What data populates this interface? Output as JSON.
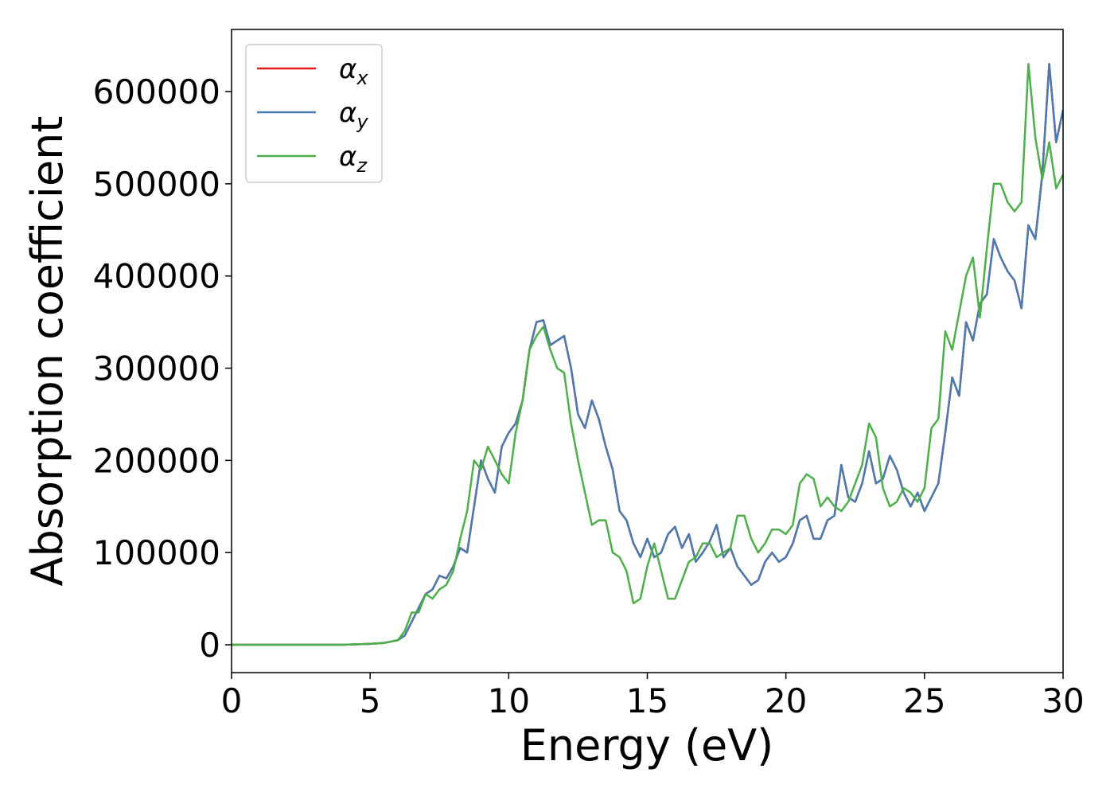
{
  "chart_data": {
    "type": "line",
    "xlabel": "Energy (eV)",
    "ylabel": "Absorption coefficient",
    "x": [
      0,
      1,
      2,
      3,
      4,
      5,
      5.5,
      6,
      6.25,
      6.5,
      6.75,
      7,
      7.25,
      7.5,
      7.75,
      8,
      8.25,
      8.5,
      8.75,
      9,
      9.25,
      9.5,
      9.75,
      10,
      10.25,
      10.5,
      10.75,
      11,
      11.25,
      11.5,
      11.75,
      12,
      12.25,
      12.5,
      12.75,
      13,
      13.25,
      13.5,
      13.75,
      14,
      14.25,
      14.5,
      14.75,
      15,
      15.25,
      15.5,
      15.75,
      16,
      16.25,
      16.5,
      16.75,
      17,
      17.25,
      17.5,
      17.75,
      18,
      18.25,
      18.5,
      18.75,
      19,
      19.25,
      19.5,
      19.75,
      20,
      20.25,
      20.5,
      20.75,
      21,
      21.25,
      21.5,
      21.75,
      22,
      22.25,
      22.5,
      22.75,
      23,
      23.25,
      23.5,
      23.75,
      24,
      24.25,
      24.5,
      24.75,
      25,
      25.25,
      25.5,
      25.75,
      26,
      26.25,
      26.5,
      26.75,
      27,
      27.25,
      27.5,
      27.75,
      28,
      28.25,
      28.5,
      28.75,
      29,
      29.25,
      29.5,
      29.75,
      30
    ],
    "series": [
      {
        "name": "αx",
        "color": "#e41a1c",
        "values": [
          0,
          0,
          0,
          0,
          0,
          1000,
          2000,
          5000,
          10000,
          25000,
          40000,
          55000,
          60000,
          75000,
          72000,
          85000,
          105000,
          100000,
          150000,
          200000,
          180000,
          165000,
          215000,
          230000,
          240000,
          265000,
          320000,
          350000,
          352000,
          325000,
          330000,
          335000,
          300000,
          250000,
          235000,
          265000,
          245000,
          215000,
          190000,
          145000,
          135000,
          110000,
          95000,
          115000,
          95000,
          100000,
          120000,
          128000,
          105000,
          120000,
          90000,
          100000,
          112000,
          130000,
          95000,
          105000,
          85000,
          75000,
          65000,
          70000,
          90000,
          100000,
          90000,
          95000,
          110000,
          135000,
          140000,
          115000,
          115000,
          135000,
          140000,
          195000,
          160000,
          155000,
          175000,
          210000,
          175000,
          180000,
          205000,
          190000,
          165000,
          150000,
          165000,
          145000,
          160000,
          175000,
          230000,
          290000,
          270000,
          350000,
          330000,
          370000,
          380000,
          440000,
          420000,
          405000,
          395000,
          365000,
          455000,
          440000,
          510000,
          630000,
          545000,
          580000
        ]
      },
      {
        "name": "αy",
        "color": "#4a7bb0",
        "values": [
          0,
          0,
          0,
          0,
          0,
          1000,
          2000,
          5000,
          10000,
          25000,
          40000,
          55000,
          60000,
          75000,
          72000,
          85000,
          105000,
          100000,
          150000,
          200000,
          180000,
          165000,
          215000,
          230000,
          240000,
          265000,
          320000,
          350000,
          352000,
          325000,
          330000,
          335000,
          300000,
          250000,
          235000,
          265000,
          245000,
          215000,
          190000,
          145000,
          135000,
          110000,
          95000,
          115000,
          95000,
          100000,
          120000,
          128000,
          105000,
          120000,
          90000,
          100000,
          112000,
          130000,
          95000,
          105000,
          85000,
          75000,
          65000,
          70000,
          90000,
          100000,
          90000,
          95000,
          110000,
          135000,
          140000,
          115000,
          115000,
          135000,
          140000,
          195000,
          160000,
          155000,
          175000,
          210000,
          175000,
          180000,
          205000,
          190000,
          165000,
          150000,
          165000,
          145000,
          160000,
          175000,
          230000,
          290000,
          270000,
          350000,
          330000,
          370000,
          380000,
          440000,
          420000,
          405000,
          395000,
          365000,
          455000,
          440000,
          510000,
          630000,
          545000,
          580000
        ]
      },
      {
        "name": "αz",
        "color": "#4daf4a",
        "values": [
          0,
          0,
          0,
          0,
          0,
          1000,
          2000,
          5000,
          15000,
          35000,
          35000,
          55000,
          50000,
          60000,
          65000,
          80000,
          115000,
          145000,
          200000,
          190000,
          215000,
          200000,
          185000,
          175000,
          230000,
          265000,
          320000,
          335000,
          345000,
          320000,
          300000,
          295000,
          240000,
          200000,
          165000,
          130000,
          135000,
          135000,
          100000,
          95000,
          80000,
          45000,
          50000,
          85000,
          110000,
          80000,
          50000,
          50000,
          70000,
          90000,
          95000,
          110000,
          110000,
          95000,
          100000,
          105000,
          140000,
          140000,
          115000,
          100000,
          110000,
          125000,
          125000,
          120000,
          130000,
          175000,
          185000,
          180000,
          150000,
          160000,
          150000,
          145000,
          155000,
          175000,
          195000,
          240000,
          225000,
          170000,
          150000,
          155000,
          170000,
          165000,
          155000,
          170000,
          235000,
          245000,
          340000,
          320000,
          360000,
          400000,
          420000,
          355000,
          430000,
          500000,
          500000,
          480000,
          470000,
          480000,
          630000,
          550000,
          505000,
          545000,
          495000,
          510000
        ]
      }
    ],
    "xlim": [
      0,
      30
    ],
    "xticks": [
      0,
      5,
      10,
      15,
      20,
      25,
      30
    ],
    "ylim": [
      -30200,
      667400
    ],
    "yticks": [
      0,
      100000,
      200000,
      300000,
      400000,
      500000,
      600000
    ],
    "legend": "upper left"
  }
}
